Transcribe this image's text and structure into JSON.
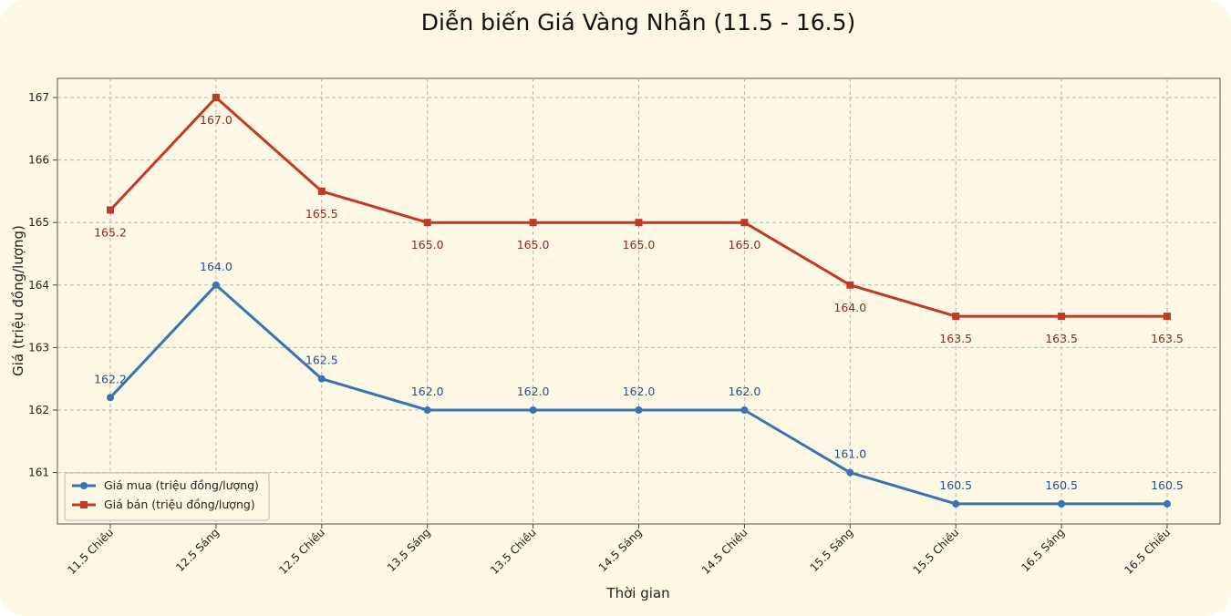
{
  "chart_data": {
    "type": "line",
    "title": "Diễn biến Giá Vàng Nhẫn (11.5 - 16.5)",
    "xlabel": "Thời gian",
    "ylabel": "Giá (triệu đồng/lượng)",
    "categories": [
      "11.5 Chiều",
      "12.5 Sáng",
      "12.5 Chiều",
      "13.5 Sáng",
      "13.5 Chiều",
      "14.5 Sáng",
      "14.5 Chiều",
      "15.5 Sáng",
      "15.5 Chiều",
      "16.5 Sáng",
      "16.5 Chiều"
    ],
    "yticks": [
      161,
      162,
      163,
      164,
      165,
      166,
      167
    ],
    "ylim": [
      160.25,
      167.25
    ],
    "grid": true,
    "legend_position": "bottom-left",
    "series": [
      {
        "key": "buy",
        "name": "Giá mua (triệu đồng/lượng)",
        "color": "#3b73b0",
        "marker": "circle",
        "values": [
          162.2,
          164.0,
          162.5,
          162.0,
          162.0,
          162.0,
          162.0,
          161.0,
          160.5,
          160.5,
          160.5
        ],
        "labels": [
          "162.2",
          "164.0",
          "162.5",
          "162.0",
          "162.0",
          "162.0",
          "162.0",
          "161.0",
          "160.5",
          "160.5",
          "160.5"
        ]
      },
      {
        "key": "sell",
        "name": "Giá bán (triệu đồng/lượng)",
        "color": "#c0392b",
        "marker": "square",
        "values": [
          165.2,
          167.0,
          165.5,
          165.0,
          165.0,
          165.0,
          165.0,
          164.0,
          163.5,
          163.5,
          163.5
        ],
        "labels": [
          "165.2",
          "167.0",
          "165.5",
          "165.0",
          "165.0",
          "165.0",
          "165.0",
          "164.0",
          "163.5",
          "163.5",
          "163.5"
        ]
      }
    ]
  }
}
